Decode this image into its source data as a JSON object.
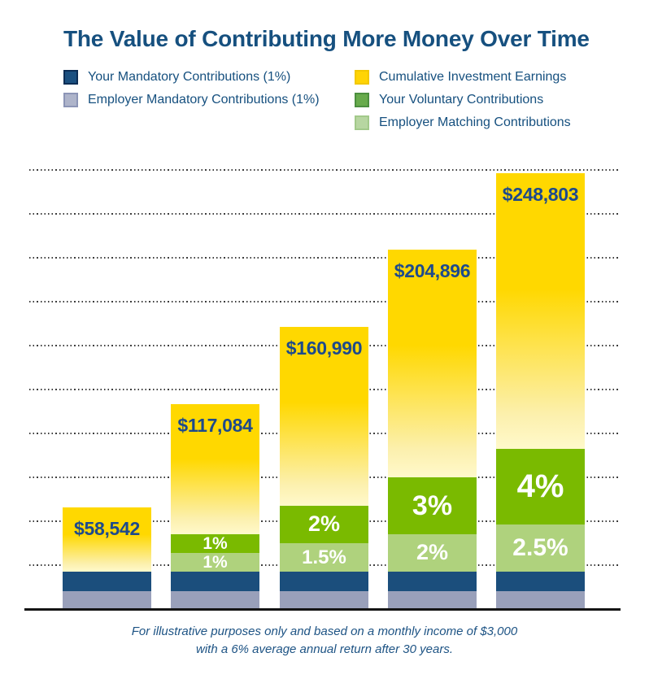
{
  "title": "The Value of Contributing More Money Over Time",
  "colors": {
    "title_navy": "#16507f",
    "value_label_navy": "#1d4a8c",
    "footnote_navy": "#1d5384",
    "bar_your_mandatory": "#1b4e7c",
    "bar_employer_mandatory": "#99a0ba",
    "bar_voluntary_green": "#7aba00",
    "bar_matching_light_green": "#afd27d",
    "bar_earnings_yellow": "#ffd800",
    "bar_earnings_yellow_pale": "#fff9cb",
    "gridline_gray": "#3d3d3d",
    "axis_black": "#141414",
    "pct_text_white": "#ffffff"
  },
  "legend": {
    "left_column": [
      {
        "label": "Your Mandatory Contributions (1%)",
        "swatch_fill": "#1b5080",
        "swatch_border": "#0c2d55",
        "swatch_name": "your-mandatory-swatch"
      },
      {
        "label": "Employer Mandatory Contributions (1%)",
        "swatch_fill": "#aeb4ca",
        "swatch_border": "#8c95b6",
        "swatch_name": "employer-mandatory-swatch"
      }
    ],
    "right_column": [
      {
        "label": "Cumulative Investment Earnings",
        "swatch_fill": "#ffd405",
        "swatch_border": "#f2c800",
        "swatch_name": "investment-earnings-swatch"
      },
      {
        "label": "Your Voluntary Contributions",
        "swatch_fill": "#68ab4c",
        "swatch_border": "#4c8f3f",
        "swatch_name": "your-voluntary-swatch"
      },
      {
        "label": "Employer Matching Contributions",
        "swatch_fill": "#b7d6a1",
        "swatch_border": "#a2c98a",
        "swatch_name": "employer-matching-swatch"
      }
    ]
  },
  "footnote": {
    "line1": "For illustrative purposes only and based on a monthly income of $3,000",
    "line2": "with a 6% average annual return after 30 years."
  },
  "chart_data": {
    "type": "bar",
    "stacked": true,
    "unit": "USD",
    "ylim": [
      0,
      250000
    ],
    "gridline_interval": 25000,
    "gridline_style": "dotted",
    "x_axis_labels": [],
    "stack_order_bottom_to_top": [
      "employer_mandatory",
      "your_mandatory",
      "employer_matching",
      "your_voluntary",
      "earnings"
    ],
    "bars": [
      {
        "total": 58542,
        "total_label": "$58,542",
        "voluntary_pct_label": "",
        "matching_pct_label": "",
        "segments": {
          "employer_mandatory": 10800,
          "your_mandatory": 10800,
          "employer_matching": 0,
          "your_voluntary": 0,
          "earnings": 36942
        }
      },
      {
        "total": 117084,
        "total_label": "$117,084",
        "voluntary_pct_label": "1%",
        "matching_pct_label": "1%",
        "segments": {
          "employer_mandatory": 10800,
          "your_mandatory": 10800,
          "employer_matching": 10800,
          "your_voluntary": 10800,
          "earnings": 73884
        }
      },
      {
        "total": 160990,
        "total_label": "$160,990",
        "voluntary_pct_label": "2%",
        "matching_pct_label": "1.5%",
        "segments": {
          "employer_mandatory": 10800,
          "your_mandatory": 10800,
          "employer_matching": 16200,
          "your_voluntary": 21600,
          "earnings": 101590
        }
      },
      {
        "total": 204896,
        "total_label": "$204,896",
        "voluntary_pct_label": "3%",
        "matching_pct_label": "2%",
        "segments": {
          "employer_mandatory": 10800,
          "your_mandatory": 10800,
          "employer_matching": 21600,
          "your_voluntary": 32400,
          "earnings": 129296
        }
      },
      {
        "total": 248803,
        "total_label": "$248,803",
        "voluntary_pct_label": "4%",
        "matching_pct_label": "2.5%",
        "segments": {
          "employer_mandatory": 10800,
          "your_mandatory": 10800,
          "employer_matching": 27000,
          "your_voluntary": 43200,
          "earnings": 157003
        }
      }
    ]
  }
}
